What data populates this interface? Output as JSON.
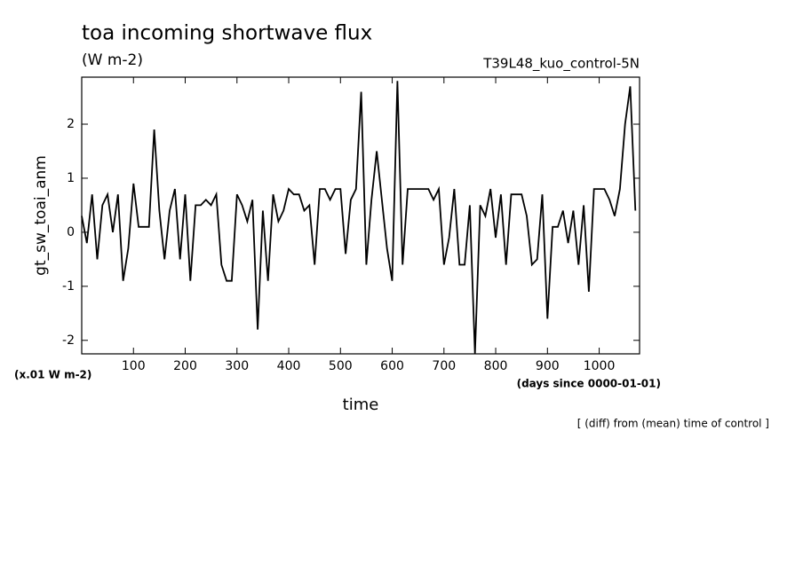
{
  "chart_data": {
    "type": "line",
    "title": "toa incoming shortwave flux",
    "subtitle": "(W m-2)",
    "run_label": "T39L48_kuo_control-5N",
    "y_label": "gt_sw_toai_anm",
    "y_unit": "(x.01 W m-2)",
    "x_unit": "(days since 0000-01-01)",
    "x_label": "time",
    "footnote": "[ (diff) from (mean) time of control ]",
    "x": [
      0,
      10,
      20,
      30,
      40,
      50,
      60,
      70,
      80,
      90,
      100,
      110,
      120,
      130,
      140,
      150,
      160,
      170,
      180,
      190,
      200,
      210,
      220,
      230,
      240,
      250,
      260,
      270,
      280,
      290,
      300,
      310,
      320,
      330,
      340,
      350,
      360,
      370,
      380,
      390,
      400,
      410,
      420,
      430,
      440,
      450,
      460,
      470,
      480,
      490,
      500,
      510,
      520,
      530,
      540,
      550,
      560,
      570,
      580,
      590,
      600,
      610,
      620,
      630,
      640,
      650,
      660,
      670,
      680,
      690,
      700,
      710,
      720,
      730,
      740,
      750,
      760,
      770,
      780,
      790,
      800,
      810,
      820,
      830,
      840,
      850,
      860,
      870,
      880,
      890,
      900,
      910,
      920,
      930,
      940,
      950,
      960,
      970,
      980,
      990,
      1000,
      1010,
      1020,
      1030,
      1040,
      1050,
      1060,
      1070
    ],
    "series": [
      {
        "name": "gt_sw_toai_anm",
        "color": "#000000",
        "values": [
          0.3,
          -0.2,
          0.7,
          -0.5,
          0.5,
          0.7,
          0.0,
          0.7,
          -0.9,
          -0.3,
          0.9,
          0.1,
          0.1,
          0.1,
          1.9,
          0.4,
          -0.5,
          0.4,
          0.8,
          -0.5,
          0.7,
          -0.9,
          0.5,
          0.5,
          0.6,
          0.5,
          0.7,
          -0.6,
          -0.9,
          -0.9,
          0.7,
          0.5,
          0.2,
          0.6,
          -1.8,
          0.4,
          -0.9,
          0.7,
          0.2,
          0.4,
          0.8,
          0.7,
          0.7,
          0.4,
          0.5,
          -0.6,
          0.8,
          0.8,
          0.6,
          0.8,
          0.8,
          -0.4,
          0.6,
          0.8,
          2.6,
          -0.6,
          0.6,
          1.5,
          0.6,
          -0.3,
          -0.9,
          2.8,
          -0.6,
          0.8,
          0.8,
          0.8,
          0.8,
          0.8,
          0.6,
          0.8,
          -0.6,
          -0.1,
          0.8,
          -0.6,
          -0.6,
          0.5,
          -2.25,
          0.5,
          0.3,
          0.8,
          -0.1,
          0.7,
          -0.6,
          0.7,
          0.7,
          0.7,
          0.3,
          -0.6,
          -0.5,
          0.7,
          -1.6,
          0.1,
          0.1,
          0.4,
          -0.2,
          0.4,
          -0.6,
          0.5,
          -1.1,
          0.8,
          0.8,
          0.8,
          0.6,
          0.3,
          0.8,
          2.0,
          2.7,
          0.4
        ]
      }
    ],
    "xlim": [
      0,
      1078
    ],
    "ylim": [
      -2.25,
      2.87
    ],
    "xticks": [
      100,
      200,
      300,
      400,
      500,
      600,
      700,
      800,
      900,
      1000
    ],
    "yticks": [
      -2,
      -1,
      0,
      1,
      2
    ]
  }
}
